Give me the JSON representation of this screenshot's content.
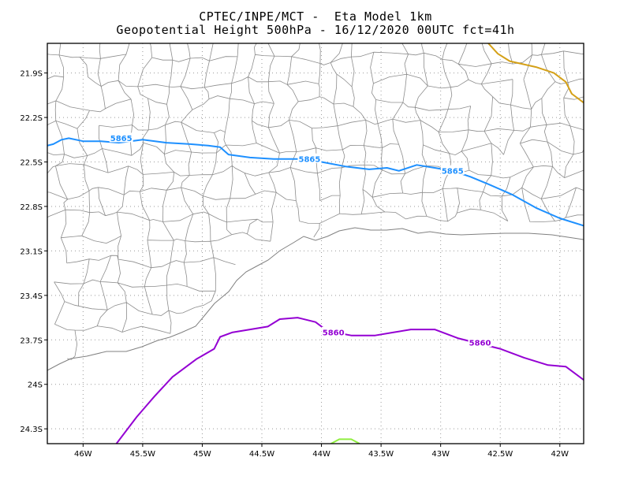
{
  "header": {
    "line1": "CPTEC/INPE/MCT -  Eta Model 1km",
    "line2": "Geopotential Height 500hPa - 16/12/2020 00UTC fct=41h"
  },
  "map": {
    "lon_range": [
      -46.3,
      -41.8
    ],
    "lat_range": [
      -24.4,
      -21.7
    ],
    "lon_ticks": [
      {
        "value": -46.0,
        "label": "46W"
      },
      {
        "value": -45.5,
        "label": "45.5W"
      },
      {
        "value": -45.0,
        "label": "45W"
      },
      {
        "value": -44.5,
        "label": "44.5W"
      },
      {
        "value": -44.0,
        "label": "44W"
      },
      {
        "value": -43.5,
        "label": "43.5W"
      },
      {
        "value": -43.0,
        "label": "43W"
      },
      {
        "value": -42.5,
        "label": "42.5W"
      },
      {
        "value": -42.0,
        "label": "42W"
      }
    ],
    "lat_ticks": [
      {
        "value": -21.9,
        "label": "21.9S"
      },
      {
        "value": -22.2,
        "label": "22.2S"
      },
      {
        "value": -22.5,
        "label": "22.5S"
      },
      {
        "value": -22.8,
        "label": "22.8S"
      },
      {
        "value": -23.1,
        "label": "23.1S"
      },
      {
        "value": -23.4,
        "label": "23.4S"
      },
      {
        "value": -23.7,
        "label": "23.7S"
      },
      {
        "value": -24.0,
        "label": "24S"
      },
      {
        "value": -24.3,
        "label": "24.3S"
      }
    ],
    "contours": [
      {
        "level": "5865",
        "color": "#1e90ff",
        "points": [
          [
            -46.3,
            -22.39
          ],
          [
            -46.25,
            -22.38
          ],
          [
            -46.18,
            -22.35
          ],
          [
            -46.12,
            -22.34
          ],
          [
            -46.0,
            -22.36
          ],
          [
            -45.85,
            -22.36
          ],
          [
            -45.7,
            -22.37
          ],
          [
            -45.5,
            -22.35
          ],
          [
            -45.3,
            -22.37
          ],
          [
            -45.1,
            -22.38
          ],
          [
            -44.95,
            -22.39
          ],
          [
            -44.85,
            -22.4
          ],
          [
            -44.78,
            -22.45
          ],
          [
            -44.6,
            -22.47
          ],
          [
            -44.4,
            -22.48
          ],
          [
            -44.2,
            -22.48
          ],
          [
            -44.0,
            -22.5
          ],
          [
            -43.8,
            -22.53
          ],
          [
            -43.6,
            -22.55
          ],
          [
            -43.45,
            -22.54
          ],
          [
            -43.35,
            -22.56
          ],
          [
            -43.2,
            -22.52
          ],
          [
            -43.05,
            -22.54
          ],
          [
            -42.9,
            -22.56
          ],
          [
            -42.75,
            -22.6
          ],
          [
            -42.6,
            -22.65
          ],
          [
            -42.4,
            -22.72
          ],
          [
            -42.2,
            -22.81
          ],
          [
            -42.0,
            -22.88
          ],
          [
            -41.8,
            -22.93
          ]
        ],
        "labels": [
          [
            -45.68,
            -22.34
          ],
          [
            -44.1,
            -22.48
          ],
          [
            -42.9,
            -22.56
          ]
        ]
      },
      {
        "level": "5860",
        "color": "#9400d3",
        "points": [
          [
            -45.72,
            -24.4
          ],
          [
            -45.55,
            -24.22
          ],
          [
            -45.4,
            -24.08
          ],
          [
            -45.25,
            -23.95
          ],
          [
            -45.05,
            -23.83
          ],
          [
            -44.9,
            -23.76
          ],
          [
            -44.85,
            -23.68
          ],
          [
            -44.75,
            -23.65
          ],
          [
            -44.6,
            -23.63
          ],
          [
            -44.45,
            -23.61
          ],
          [
            -44.35,
            -23.56
          ],
          [
            -44.2,
            -23.55
          ],
          [
            -44.05,
            -23.58
          ],
          [
            -43.95,
            -23.64
          ],
          [
            -43.75,
            -23.67
          ],
          [
            -43.55,
            -23.67
          ],
          [
            -43.4,
            -23.65
          ],
          [
            -43.25,
            -23.63
          ],
          [
            -43.05,
            -23.63
          ],
          [
            -42.85,
            -23.69
          ],
          [
            -42.7,
            -23.72
          ],
          [
            -42.5,
            -23.76
          ],
          [
            -42.3,
            -23.82
          ],
          [
            -42.1,
            -23.87
          ],
          [
            -41.95,
            -23.88
          ],
          [
            -41.8,
            -23.97
          ]
        ],
        "labels": [
          [
            -43.9,
            -23.65
          ],
          [
            -42.67,
            -23.72
          ]
        ]
      },
      {
        "level": "",
        "color": "#d4a017",
        "points": [
          [
            -42.6,
            -21.7
          ],
          [
            -42.52,
            -21.77
          ],
          [
            -42.42,
            -21.82
          ],
          [
            -42.2,
            -21.86
          ],
          [
            -42.05,
            -21.9
          ],
          [
            -41.95,
            -21.96
          ],
          [
            -41.9,
            -22.04
          ],
          [
            -41.8,
            -22.1
          ]
        ],
        "labels": []
      },
      {
        "level": "",
        "color": "#90ee40",
        "points": [
          [
            -43.92,
            -24.4
          ],
          [
            -43.85,
            -24.37
          ],
          [
            -43.75,
            -24.37
          ],
          [
            -43.68,
            -24.4
          ]
        ],
        "labels": []
      }
    ]
  }
}
